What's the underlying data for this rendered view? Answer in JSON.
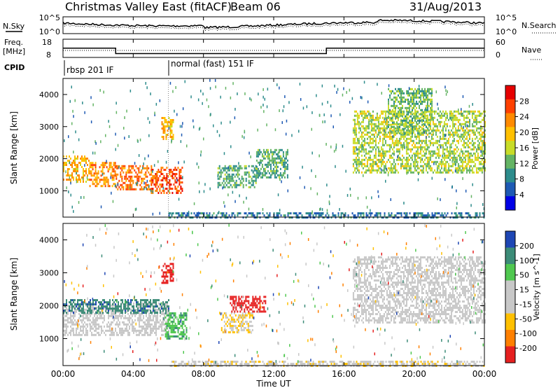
{
  "header": {
    "title": "Christmas Valley East (fitACF)",
    "beam": "Beam 06",
    "date": "31/Aug/2013"
  },
  "noise_panel": {
    "ylabel": "N.Sky",
    "right_label": "N.Search",
    "left_ticks": [
      "10^5",
      "10^0"
    ],
    "right_ticks": [
      "10^5",
      "10^0"
    ]
  },
  "freq_panel": {
    "ylabel_line1": "Freq.",
    "ylabel_line2": "[MHz]",
    "left_ticks": [
      "18",
      "8"
    ],
    "right_ticks": [
      "60",
      "0"
    ],
    "right_label": "Nave"
  },
  "cpid": {
    "label": "CPID",
    "mode1": "rbsp 201 IF",
    "mode2": "normal (fast) 151 IF"
  },
  "power_panel": {
    "ylabel": "Slant Range [km]",
    "colorbar_label": "Power [dB]",
    "colorbar_ticks": [
      "28",
      "24",
      "20",
      "16",
      "12",
      "8",
      "4"
    ],
    "colorbar_colors": [
      "#e60000",
      "#ff4000",
      "#ff8a00",
      "#ffc000",
      "#c8dc28",
      "#64b464",
      "#2d8c8c",
      "#1e5ab4",
      "#0000e6"
    ]
  },
  "velocity_panel": {
    "ylabel": "Slant Range [km]",
    "colorbar_label": "Velocity [m s^-1]",
    "colorbar_ticks": [
      "200",
      "100",
      "50",
      "15",
      "-15",
      "-50",
      "-100",
      "-200"
    ],
    "colorbar_colors": [
      "#1e46b4",
      "#3c8c78",
      "#50c850",
      "#c8c8c8",
      "#c8c8c8",
      "#ffc000",
      "#ff8000",
      "#e62020"
    ]
  },
  "x_axis": {
    "label": "Time UT",
    "ticks": [
      "00:00",
      "04:00",
      "08:00",
      "12:00",
      "16:00",
      "20:00",
      "00:00"
    ]
  },
  "range_ticks": [
    "4000",
    "3000",
    "2000",
    "1000"
  ],
  "chart_data": {
    "type": "heatmap",
    "title": "Christmas Valley East (fitACF)",
    "xlabel": "Time UT",
    "ylabel": "Slant Range [km]",
    "xlim": [
      0,
      24
    ],
    "ylim": [
      180,
      4500
    ],
    "freq_steps": [
      {
        "t0": 0,
        "t1": 3,
        "mhz": 14
      },
      {
        "t0": 3,
        "t1": 15,
        "mhz": 10.5
      },
      {
        "t0": 15,
        "t1": 24,
        "mhz": 14
      }
    ],
    "cpid_switch_time": 6,
    "power_echo_regions": [
      {
        "t0": 0,
        "t1": 1.5,
        "r0": 1300,
        "r1": 2100,
        "level_db": 20
      },
      {
        "t0": 1.5,
        "t1": 3,
        "r0": 1150,
        "r1": 1900,
        "level_db": 22
      },
      {
        "t0": 3,
        "t1": 5,
        "r0": 1050,
        "r1": 1800,
        "level_db": 24
      },
      {
        "t0": 5,
        "t1": 6.8,
        "r0": 950,
        "r1": 1750,
        "level_db": 26
      },
      {
        "t0": 5.6,
        "t1": 6.3,
        "r0": 2600,
        "r1": 3300,
        "level_db": 20
      },
      {
        "t0": 8.8,
        "t1": 11,
        "r0": 1100,
        "r1": 1800,
        "level_db": 10
      },
      {
        "t0": 11,
        "t1": 12.8,
        "r0": 1400,
        "r1": 2300,
        "level_db": 10
      },
      {
        "t0": 16.5,
        "t1": 24,
        "r0": 1600,
        "r1": 3500,
        "level_db": 14
      },
      {
        "t0": 18.5,
        "t1": 21,
        "r0": 2800,
        "r1": 4200,
        "level_db": 12
      },
      {
        "t0": 6,
        "t1": 24,
        "r0": 180,
        "r1": 330,
        "level_db": 6
      }
    ],
    "velocity_echo_regions": [
      {
        "t0": 0,
        "t1": 6,
        "r0": 1100,
        "r1": 2100,
        "velocity": 0
      },
      {
        "t0": 0,
        "t1": 6,
        "r0": 1800,
        "r1": 2200,
        "velocity": 150
      },
      {
        "t0": 5.6,
        "t1": 6.3,
        "r0": 2700,
        "r1": 3300,
        "velocity": -200
      },
      {
        "t0": 5.8,
        "t1": 7.0,
        "r0": 1000,
        "r1": 1800,
        "velocity": 100
      },
      {
        "t0": 9,
        "t1": 10.8,
        "r0": 1200,
        "r1": 1800,
        "velocity": -60
      },
      {
        "t0": 9.5,
        "t1": 11.5,
        "r0": 1800,
        "r1": 2300,
        "velocity": -200
      },
      {
        "t0": 16.5,
        "t1": 24,
        "r0": 1500,
        "r1": 3500,
        "velocity": 0
      },
      {
        "t0": 6,
        "t1": 24,
        "r0": 180,
        "r1": 330,
        "velocity": -40
      }
    ]
  }
}
